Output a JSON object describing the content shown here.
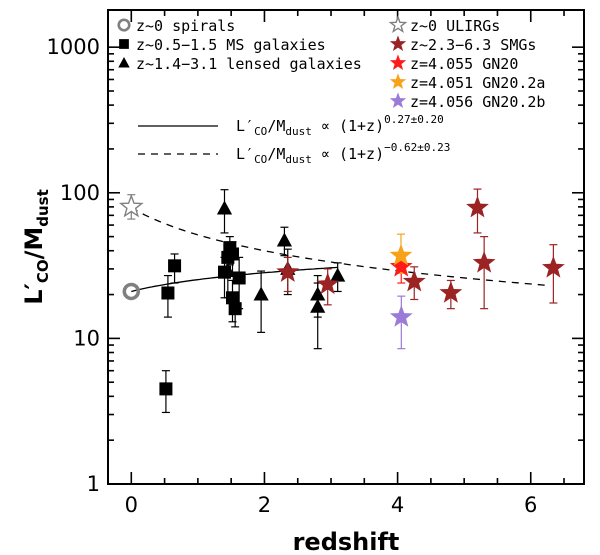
{
  "chart_data": {
    "type": "scatter",
    "xlabel": "redshift",
    "ylabel": "L′CO/Mdust",
    "ylabel_main": "L′",
    "ylabel_sub1": "CO",
    "ylabel_mid": "/M",
    "ylabel_sub2": "dust",
    "xlim": [
      -0.35,
      6.8
    ],
    "ylim": [
      1,
      1800
    ],
    "y_scale": "log",
    "x_ticks": [
      0,
      2,
      4,
      6
    ],
    "x_tick_labels": [
      "0",
      "2",
      "4",
      "6"
    ],
    "y_ticks": [
      1,
      10,
      100,
      1000
    ],
    "y_tick_labels": [
      "1",
      "10",
      "100",
      "1000"
    ],
    "legend_position": "top",
    "legend": [
      {
        "key": "spirals",
        "label": "z~0 spirals",
        "marker": "ring",
        "color": "#808080"
      },
      {
        "key": "ms",
        "label": "z~0.5−1.5 MS galaxies",
        "marker": "square",
        "color": "#000000"
      },
      {
        "key": "lensed",
        "label": "z~1.4−3.1 lensed galaxies",
        "marker": "triangle",
        "color": "#000000"
      },
      {
        "key": "ulirg",
        "label": "z~0 ULIRGs",
        "marker": "open-star",
        "color": "#808080"
      },
      {
        "key": "smg",
        "label": "z~2.3−6.3 SMGs",
        "marker": "star",
        "color": "#9b2323"
      },
      {
        "key": "gn20",
        "label": "z=4.055 GN20",
        "marker": "star",
        "color": "#ff1a1a"
      },
      {
        "key": "gn20a",
        "label": "z=4.051 GN20.2a",
        "marker": "star",
        "color": "#f7a319"
      },
      {
        "key": "gn20b",
        "label": "z=4.056 GN20.2b",
        "marker": "star",
        "color": "#9a7bd8"
      }
    ],
    "fit_lines": [
      {
        "key": "solid",
        "label_prefix": "L′",
        "label_sub1": "CO",
        "label_mid": "/M",
        "label_sub2": "dust",
        "label_rel": " ∝ (1+z)",
        "exponent": "0.27±0.20",
        "style": "solid",
        "x_range": [
          0,
          3.1
        ],
        "norm_at_z0": 21,
        "slope": 0.27
      },
      {
        "key": "dashed",
        "label_prefix": "L′",
        "label_sub1": "CO",
        "label_mid": "/M",
        "label_sub2": "dust",
        "label_rel": " ∝ (1+z)",
        "exponent": "−0.62±0.23",
        "style": "dashed",
        "x_range": [
          0,
          6.3
        ],
        "norm_at_z0": 79,
        "slope": -0.62
      }
    ],
    "series": [
      {
        "key": "spirals",
        "marker": "ring",
        "color": "#808080",
        "points": [
          {
            "x": 0.0,
            "y": 21
          }
        ]
      },
      {
        "key": "ulirg",
        "marker": "open-star",
        "color": "#808080",
        "points": [
          {
            "x": 0.0,
            "y": 80,
            "ylo": 66,
            "yhi": 97
          }
        ]
      },
      {
        "key": "ms",
        "marker": "square",
        "color": "#000000",
        "points": [
          {
            "x": 0.52,
            "y": 4.5,
            "ylo": 3.1,
            "yhi": 6.0
          },
          {
            "x": 0.55,
            "y": 20.5,
            "ylo": 14,
            "yhi": 27
          },
          {
            "x": 0.65,
            "y": 31.5,
            "ylo": 24,
            "yhi": 38
          },
          {
            "x": 1.4,
            "y": 28.5,
            "ylo": 19,
            "yhi": 36
          },
          {
            "x": 1.45,
            "y": 36,
            "ylo": 27,
            "yhi": 44
          },
          {
            "x": 1.48,
            "y": 42,
            "ylo": 32,
            "yhi": 50
          },
          {
            "x": 1.52,
            "y": 38,
            "ylo": 28,
            "yhi": 46
          },
          {
            "x": 1.52,
            "y": 19,
            "ylo": 13,
            "yhi": 25
          },
          {
            "x": 1.56,
            "y": 16,
            "ylo": 12,
            "yhi": 20
          },
          {
            "x": 1.62,
            "y": 26,
            "ylo": 16,
            "yhi": 36
          }
        ]
      },
      {
        "key": "lensed",
        "marker": "triangle",
        "color": "#000000",
        "points": [
          {
            "x": 1.4,
            "y": 78,
            "ylo": 53,
            "yhi": 105
          },
          {
            "x": 1.45,
            "y": 29,
            "ylo": 19,
            "yhi": 39
          },
          {
            "x": 1.95,
            "y": 20,
            "ylo": 11,
            "yhi": 29
          },
          {
            "x": 2.3,
            "y": 47,
            "ylo": 37,
            "yhi": 58
          },
          {
            "x": 2.35,
            "y": 30,
            "ylo": 20,
            "yhi": 41
          },
          {
            "x": 2.8,
            "y": 20,
            "ylo": 14,
            "yhi": 27
          },
          {
            "x": 2.8,
            "y": 16.5,
            "ylo": 8.5,
            "yhi": 24
          },
          {
            "x": 3.1,
            "y": 27,
            "ylo": 21,
            "yhi": 33
          }
        ]
      },
      {
        "key": "smg",
        "marker": "star",
        "color": "#9b2323",
        "points": [
          {
            "x": 2.35,
            "y": 28.5,
            "ylo": 21,
            "yhi": 36
          },
          {
            "x": 2.95,
            "y": 23.5,
            "ylo": 17,
            "yhi": 30
          },
          {
            "x": 4.25,
            "y": 24.5,
            "ylo": 18.5,
            "yhi": 31
          },
          {
            "x": 4.8,
            "y": 20.5,
            "ylo": 16,
            "yhi": 25
          },
          {
            "x": 5.2,
            "y": 79,
            "ylo": 53,
            "yhi": 106
          },
          {
            "x": 5.3,
            "y": 33,
            "ylo": 16,
            "yhi": 50
          },
          {
            "x": 6.34,
            "y": 30.5,
            "ylo": 17.5,
            "yhi": 44
          }
        ]
      },
      {
        "key": "gn20",
        "marker": "star",
        "color": "#ff1a1a",
        "points": [
          {
            "x": 4.055,
            "y": 31,
            "ylo": 24,
            "yhi": 38
          }
        ]
      },
      {
        "key": "gn20a",
        "marker": "star",
        "color": "#f7a319",
        "points": [
          {
            "x": 4.051,
            "y": 37,
            "ylo": 28,
            "yhi": 52
          }
        ]
      },
      {
        "key": "gn20b",
        "marker": "star",
        "color": "#9a7bd8",
        "points": [
          {
            "x": 4.056,
            "y": 14,
            "ylo": 8.5,
            "yhi": 19.5
          }
        ]
      }
    ]
  }
}
